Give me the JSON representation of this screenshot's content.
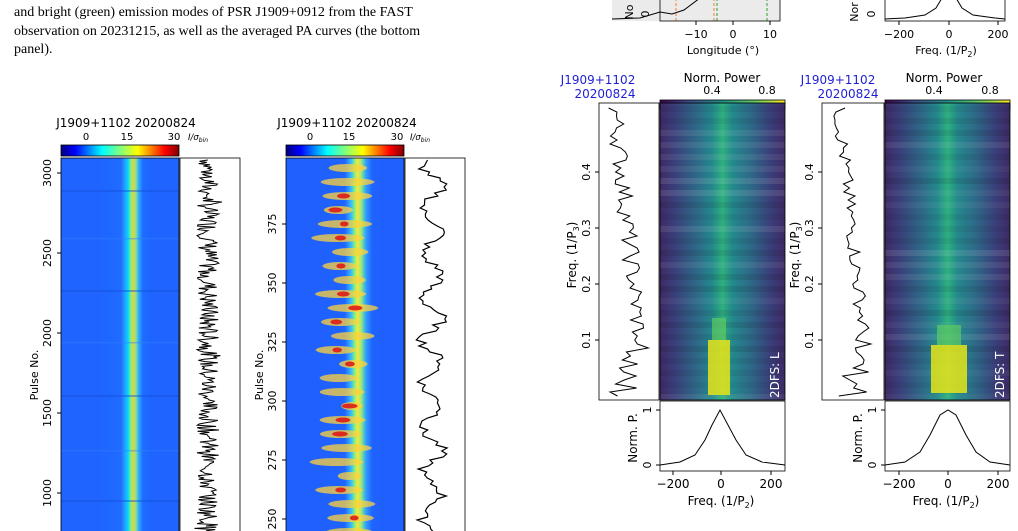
{
  "caption": {
    "line1": "and bright (green) emission modes of PSR J1909+0912 from the FAST",
    "line2": "observation on 20231215, as well as the averaged PA curves (the bottom",
    "line3": "panel)."
  },
  "figures": {
    "fig_a": {
      "title": "J1909+1102  20200824",
      "cbar_ticks": [
        "0",
        "15",
        "30"
      ],
      "cbar_unit_main": "I/σ",
      "cbar_unit_sub": "bin",
      "ylabel": "Pulse No.",
      "yticks": [
        "3000",
        "2500",
        "2000",
        "1500",
        "1000"
      ]
    },
    "fig_b": {
      "title": "J1909+1102  20200824",
      "cbar_ticks": [
        "0",
        "15",
        "30"
      ],
      "cbar_unit_main": "I/σ",
      "cbar_unit_sub": "bin",
      "ylabel": "Pulse No.",
      "yticks": [
        "375",
        "350",
        "325",
        "300",
        "275",
        "250"
      ]
    },
    "fig_top": {
      "xlabel": "Longitude (°)",
      "xticks": [
        "−10",
        "0",
        "10"
      ],
      "ylabel_frag": "No",
      "ytick": "0"
    },
    "fig_top_r": {
      "xlabel_main": "Freq. (1/P",
      "xlabel_sub": "2",
      "xlabel_end": ")",
      "xticks": [
        "−200",
        "0",
        "200"
      ],
      "ylabel_frag": "Nor",
      "ytick": "0"
    },
    "fig_c": {
      "psr_name": "J1909+1102",
      "date": "20200824",
      "cbar_title": "Norm. Power",
      "cbar_ticks": [
        "0.4",
        "0.8"
      ],
      "ylabel_main": "Freq. (1/P",
      "ylabel_sub": "3",
      "ylabel_end": ")",
      "yticks": [
        "0.4",
        "0.3",
        "0.2",
        "0.1"
      ],
      "tag": "2DFS: L",
      "bottom_ylabel": "Norm. P.",
      "bottom_yticks": [
        "1",
        "0"
      ],
      "xlabel_main": "Freq. (1/P",
      "xlabel_sub": "2",
      "xlabel_end": ")",
      "xticks": [
        "−200",
        "0",
        "200"
      ]
    },
    "fig_d": {
      "psr_name": "J1909+1102",
      "date": "20200824",
      "cbar_title": "Norm. Power",
      "cbar_ticks": [
        "0.4",
        "0.8"
      ],
      "ylabel_main": "Freq. (1/P",
      "ylabel_sub": "3",
      "ylabel_end": ")",
      "yticks": [
        "0.4",
        "0.3",
        "0.2",
        "0.1"
      ],
      "tag": "2DFS: T",
      "bottom_ylabel": "Norm. P.",
      "bottom_yticks": [
        "1",
        "0"
      ],
      "xlabel_main": "Freq. (1/P",
      "xlabel_sub": "2",
      "xlabel_end": ")",
      "xticks": [
        "−200",
        "0",
        "200"
      ]
    }
  },
  "colors": {
    "psr_label": "#1f1fd6",
    "map_bg": "#1f64ff",
    "dfs_bg": "#3b1c5e",
    "dfs_mid": "#2a8f8c",
    "dfs_hot": "#e7e419"
  }
}
